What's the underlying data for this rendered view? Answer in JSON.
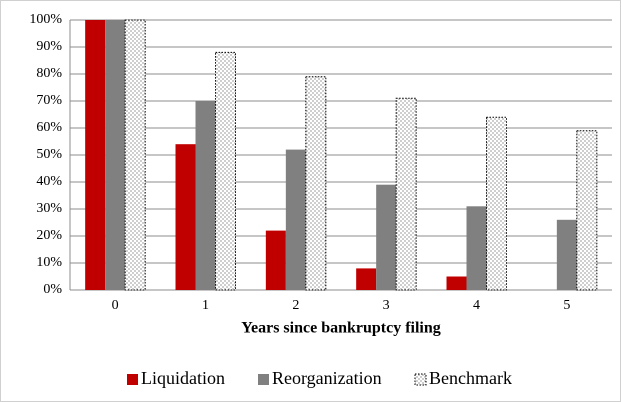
{
  "chart_data": {
    "type": "bar",
    "xlabel": "Years since bankruptcy filing",
    "categories": [
      "0",
      "1",
      "2",
      "3",
      "4",
      "5"
    ],
    "series": [
      {
        "name": "Liquidation",
        "color": "#c00000",
        "values": [
          100,
          54,
          22,
          8,
          5,
          null
        ]
      },
      {
        "name": "Reorganization",
        "color": "#808080",
        "values": [
          100,
          70,
          52,
          39,
          31,
          26
        ]
      },
      {
        "name": "Benchmark",
        "color": "#ffffff",
        "pattern": "dots",
        "values": [
          100,
          88,
          79,
          71,
          64,
          59
        ]
      }
    ],
    "ylim": [
      0,
      100
    ],
    "yticks": [
      {
        "value": 0,
        "label": "0%"
      },
      {
        "value": 10,
        "label": "10%"
      },
      {
        "value": 20,
        "label": "20%"
      },
      {
        "value": 30,
        "label": "30%"
      },
      {
        "value": 40,
        "label": "40%"
      },
      {
        "value": 50,
        "label": "50%"
      },
      {
        "value": 60,
        "label": "60%"
      },
      {
        "value": 70,
        "label": "70%"
      },
      {
        "value": 80,
        "label": "80%"
      },
      {
        "value": 90,
        "label": "90%"
      },
      {
        "value": 100,
        "label": "100%"
      }
    ],
    "grid": true,
    "legend": "bottom"
  }
}
